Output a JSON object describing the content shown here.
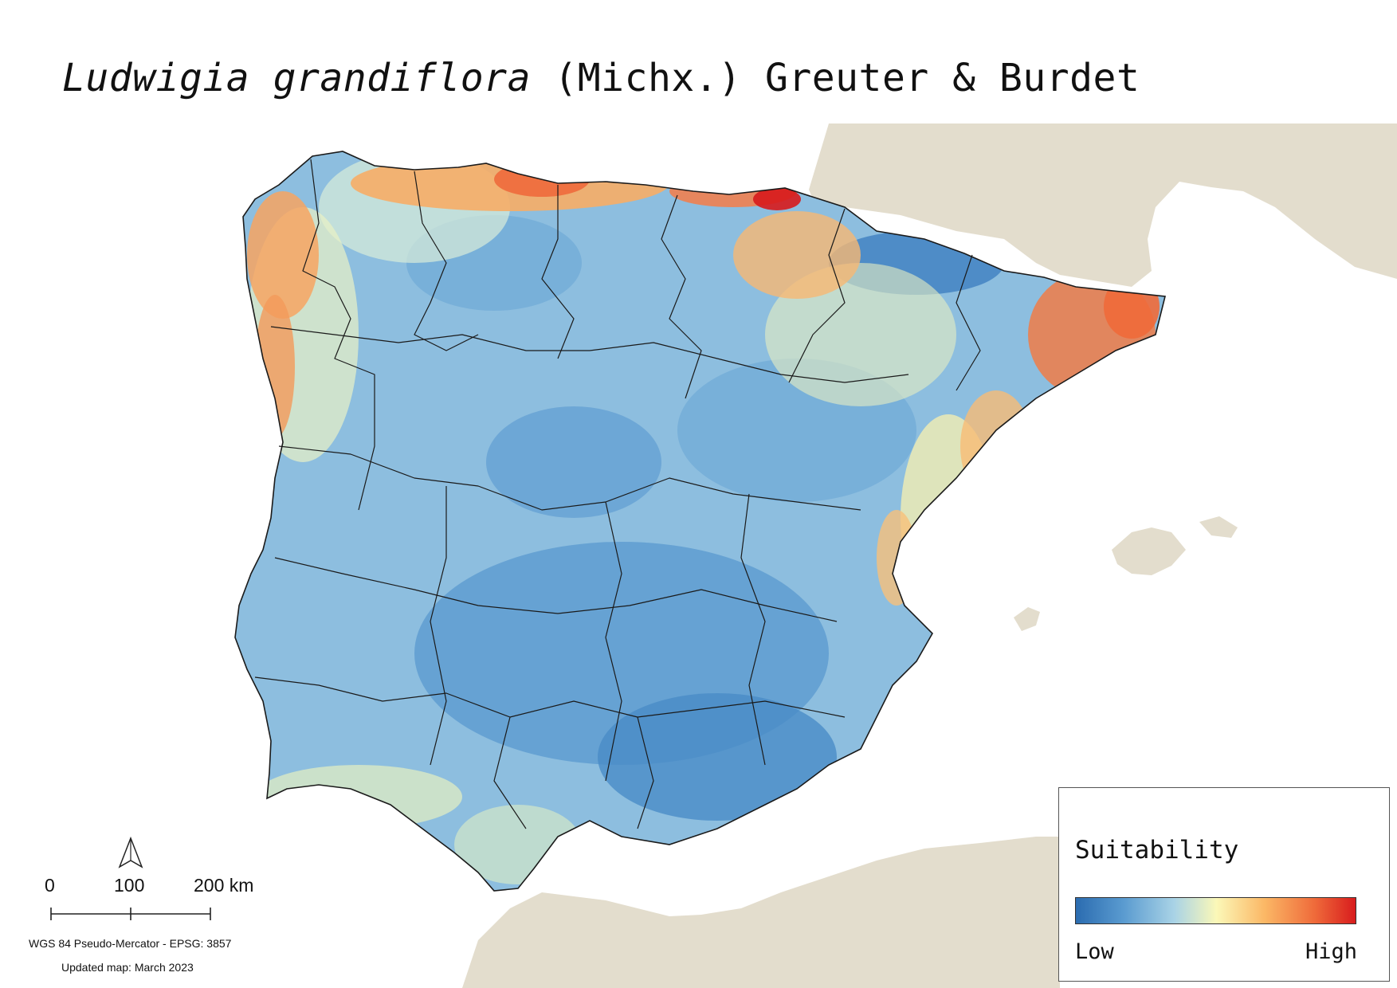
{
  "title": {
    "species": "Ludwigia grandiflora",
    "authority": "(Michx.) Greuter & Burdet"
  },
  "legend": {
    "title": "Suitability",
    "low_label": "Low",
    "high_label": "High",
    "ramp_colors": [
      "#2b6cb0",
      "#5a9bd0",
      "#a9d3e6",
      "#fbf8b8",
      "#fbb866",
      "#ef6a3a",
      "#d7191c"
    ]
  },
  "scale_bar": {
    "labels": [
      "0",
      "100",
      "200 km"
    ]
  },
  "north_arrow": {
    "icon": "north-arrow-icon"
  },
  "crs_note": "WGS 84 Pseudo-Mercator  - EPSG: 3857",
  "updated_note": "Updated map: March 2023",
  "colors": {
    "land_background": "#e3ddcd",
    "sea": "#ffffff",
    "border": "#1a1a1a"
  }
}
